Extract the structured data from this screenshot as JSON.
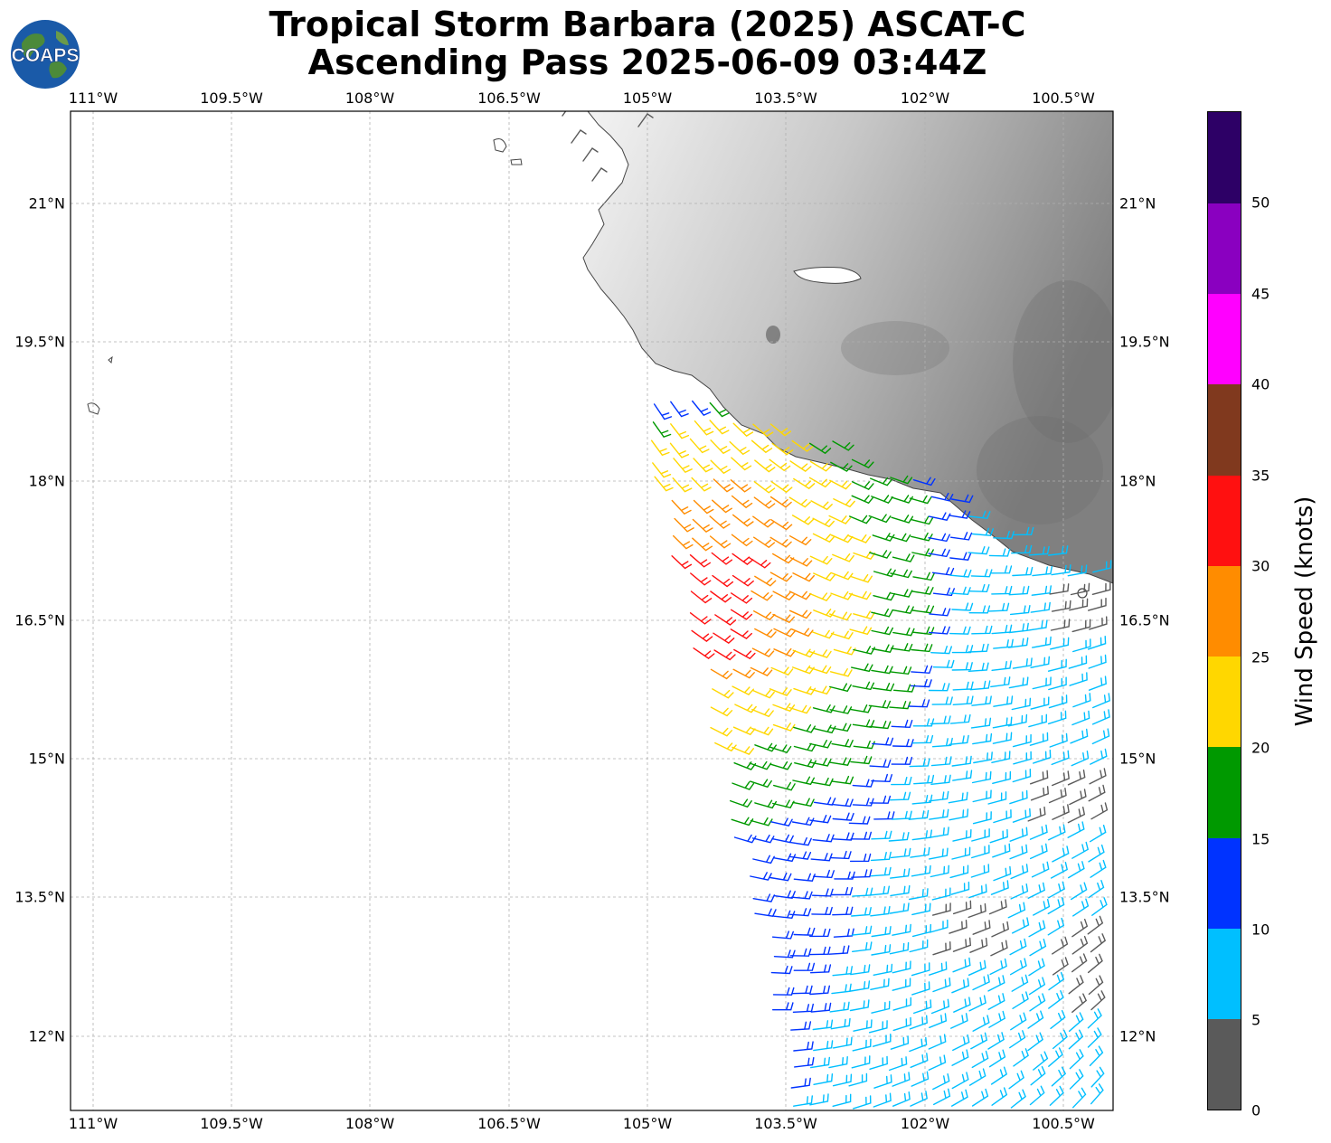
{
  "title": {
    "line1": "Tropical Storm Barbara (2025) ASCAT-C",
    "line2": "Ascending Pass 2025-06-09 03:44Z"
  },
  "logo": {
    "text": "COAPS"
  },
  "map": {
    "lon_ticks": [
      "111°W",
      "109.5°W",
      "108°W",
      "106.5°W",
      "105°W",
      "103.5°W",
      "102°W",
      "100.5°W"
    ],
    "lon_values": [
      -111,
      -109.5,
      -108,
      -106.5,
      -105,
      -103.5,
      -102,
      -100.5
    ],
    "lat_ticks": [
      "21°N",
      "19.5°N",
      "18°N",
      "16.5°N",
      "15°N",
      "13.5°N",
      "12°N"
    ],
    "lat_values": [
      21,
      19.5,
      18,
      16.5,
      15,
      13.5,
      12
    ],
    "extent": {
      "lon_min": -111.23,
      "lon_max": -99.94,
      "lat_min": 11.2,
      "lat_max": 22.0
    },
    "grid": true,
    "terrain": "grayscale elevation over Mexico"
  },
  "colorbar": {
    "label": "Wind Speed (knots)",
    "tick_labels": [
      "0",
      "5",
      "10",
      "15",
      "20",
      "25",
      "30",
      "35",
      "40",
      "45",
      "50"
    ],
    "bins": [
      {
        "min": 0,
        "max": 5,
        "color": "#5a5a5a"
      },
      {
        "min": 5,
        "max": 10,
        "color": "#00bfff"
      },
      {
        "min": 10,
        "max": 15,
        "color": "#0033ff"
      },
      {
        "min": 15,
        "max": 20,
        "color": "#009900"
      },
      {
        "min": 20,
        "max": 25,
        "color": "#ffd700"
      },
      {
        "min": 25,
        "max": 30,
        "color": "#ff8c00"
      },
      {
        "min": 30,
        "max": 35,
        "color": "#ff1010"
      },
      {
        "min": 35,
        "max": 40,
        "color": "#80391e"
      },
      {
        "min": 40,
        "max": 45,
        "color": "#ff00ff"
      },
      {
        "min": 45,
        "max": 50,
        "color": "#8a00c0"
      },
      {
        "min": 50,
        "max": 55,
        "color": "#2d0066"
      }
    ]
  }
}
